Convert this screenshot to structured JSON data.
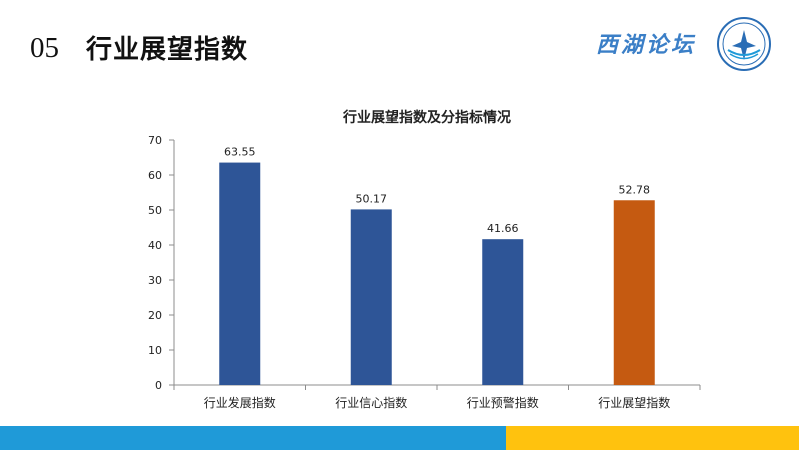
{
  "header": {
    "section_number": "05",
    "title": "行业展望指数",
    "brand_text": "西湖论坛"
  },
  "logo": {
    "description_icon": "forum-emblem-icon"
  },
  "colors": {
    "bar_default": "#2e5597",
    "bar_highlight": "#c55a11",
    "bottom_bar_blue": "#1f9ad8",
    "bottom_bar_yellow": "#ffc20e"
  },
  "chart_data": {
    "type": "bar",
    "title": "行业展望指数及分指标情况",
    "categories": [
      "行业发展指数",
      "行业信心指数",
      "行业预警指数",
      "行业展望指数"
    ],
    "values": [
      63.55,
      50.17,
      41.66,
      52.78
    ],
    "value_labels": [
      "63.55",
      "50.17",
      "41.66",
      "52.78"
    ],
    "highlight_index": 3,
    "ylim": [
      0,
      70
    ],
    "yticks": [
      0,
      10,
      20,
      30,
      40,
      50,
      60,
      70
    ],
    "xlabel": "",
    "ylabel": "",
    "grid": false
  }
}
